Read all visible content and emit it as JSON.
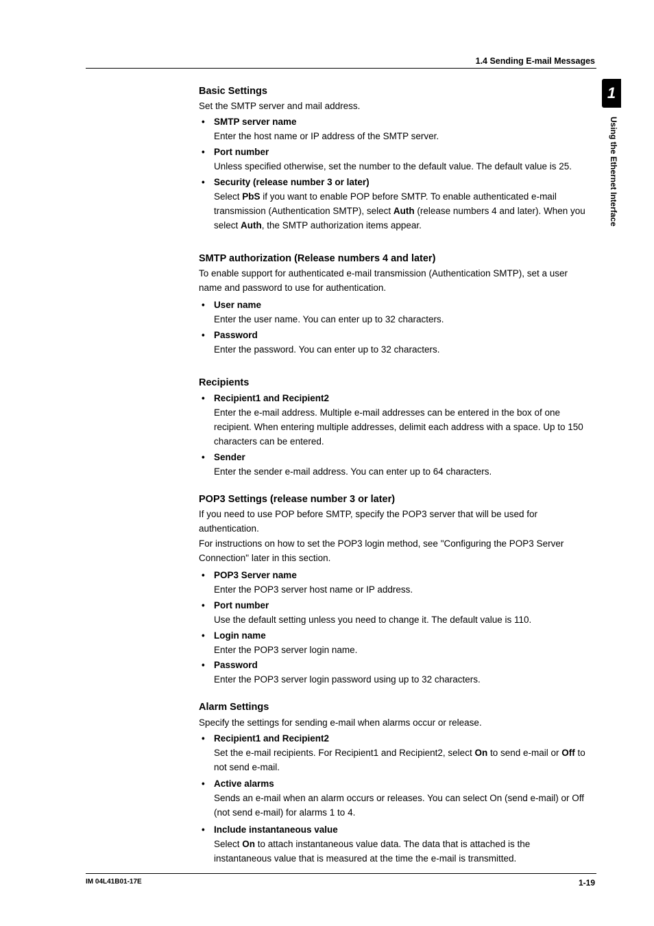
{
  "header": {
    "section": "1.4  Sending E-mail Messages"
  },
  "sidetab": {
    "number": "1",
    "label": "Using the Ethernet Interface"
  },
  "content": {
    "basic": {
      "title": "Basic Settings",
      "intro": "Set the SMTP server and mail address.",
      "smtp_name": {
        "h": "SMTP server name",
        "b": "Enter the host name or IP address of the SMTP server."
      },
      "port": {
        "h": "Port number",
        "b": "Unless specified otherwise, set the number to the default value.  The default value is 25."
      },
      "security": {
        "h": "Security (release number 3 or later)",
        "b1": "Select ",
        "pbs": "PbS",
        "b2": " if you want to enable POP before SMTP.  To enable authenticated e-mail transmission (Authentication SMTP), select ",
        "auth1": "Auth",
        "b3": " (release numbers 4 and later). When you select ",
        "auth2": "Auth",
        "b4": ", the SMTP authorization items appear."
      }
    },
    "smtpauth": {
      "title": "SMTP authorization (Release numbers 4 and later)",
      "intro": "To enable support for authenticated e-mail transmission (Authentication SMTP), set a user name and password to use for authentication.",
      "user": {
        "h": "User name",
        "b": "Enter the user name. You can enter up to 32 characters."
      },
      "pass": {
        "h": "Password",
        "b": "Enter the password. You can enter up to 32 characters."
      }
    },
    "recipients": {
      "title": "Recipients",
      "r12": {
        "h": "Recipient1 and Recipient2",
        "b": "Enter the e-mail address.  Multiple e-mail addresses can be entered in the box of one recipient.  When entering multiple addresses, delimit each address with a space.  Up to 150 characters can be entered."
      },
      "sender": {
        "h": "Sender",
        "b": "Enter the sender e-mail address.  You can enter up to 64 characters."
      }
    },
    "pop3": {
      "title": "POP3 Settings (release number 3 or later)",
      "intro1": "If you need to use POP before SMTP, specify the POP3 server that will be used for authentication.",
      "intro2": "For instructions on how to set the POP3 login method, see \"Configuring the POP3 Server Connection\" later in this section.",
      "server": {
        "h": "POP3 Server name",
        "b": "Enter the POP3 server host name or IP address."
      },
      "port": {
        "h": "Port number",
        "b": "Use the default setting unless you need to change it. The default value is 110."
      },
      "login": {
        "h": "Login name",
        "b": "Enter the POP3 server login name."
      },
      "pass": {
        "h": "Password",
        "b": "Enter the POP3 server login password using up to 32 characters."
      }
    },
    "alarm": {
      "title": "Alarm Settings",
      "intro": "Specify the settings for sending e-mail when alarms occur or release.",
      "r12": {
        "h": "Recipient1 and Recipient2",
        "b1": "Set the e-mail recipients.  For Recipient1 and Recipient2, select ",
        "on": "On",
        "b2": " to send e-mail or ",
        "off": "Off",
        "b3": " to not send e-mail."
      },
      "active": {
        "h": "Active alarms",
        "b": "Sends an e-mail when an alarm occurs or releases.  You can select On (send e-mail) or Off (not send e-mail) for alarms 1 to 4."
      },
      "inst": {
        "h": "Include instantaneous value",
        "b1": "Select ",
        "on": "On",
        "b2": " to attach instantaneous value data. The data that is attached is the instantaneous value that is measured at the time the e-mail is transmitted."
      }
    }
  },
  "footer": {
    "left": "IM 04L41B01-17E",
    "right": "1-19"
  }
}
